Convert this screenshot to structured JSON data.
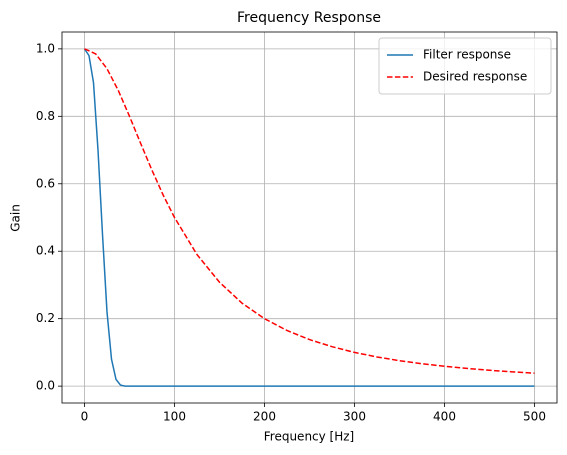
{
  "chart_data": {
    "type": "line",
    "title": "Frequency Response",
    "xlabel": "Frequency [Hz]",
    "ylabel": "Gain",
    "xlim": [
      -25,
      525
    ],
    "ylim": [
      -0.05,
      1.05
    ],
    "xticks": [
      0,
      100,
      200,
      300,
      400,
      500
    ],
    "yticks": [
      {
        "value": 0,
        "label": "0.0"
      },
      {
        "value": 0.2,
        "label": "0.2"
      },
      {
        "value": 0.4,
        "label": "0.4"
      },
      {
        "value": 0.6,
        "label": "0.6"
      },
      {
        "value": 0.8,
        "label": "0.8"
      },
      {
        "value": 1,
        "label": "1.0"
      }
    ],
    "grid": true,
    "legend": "upper right",
    "series": [
      {
        "name": "Filter response",
        "color": "#1f77b4",
        "dash": "solid",
        "x": [
          0,
          5,
          10,
          15,
          20,
          25,
          30,
          35,
          40,
          45,
          50,
          100,
          200,
          300,
          400,
          500
        ],
        "values": [
          1,
          0.98,
          0.9,
          0.7,
          0.45,
          0.22,
          0.08,
          0.02,
          0.003,
          0,
          0,
          0,
          0,
          0,
          0,
          0
        ]
      },
      {
        "name": "Desired response",
        "color": "#ff0000",
        "dash": "dashed",
        "x": [
          0,
          12.5,
          25,
          37.5,
          50,
          62.5,
          75,
          87.5,
          100,
          125,
          150,
          175,
          200,
          225,
          250,
          275,
          300,
          325,
          350,
          375,
          400,
          425,
          450,
          475,
          500
        ],
        "values": [
          1,
          0.985,
          0.941,
          0.877,
          0.8,
          0.719,
          0.64,
          0.566,
          0.5,
          0.39,
          0.308,
          0.246,
          0.2,
          0.165,
          0.138,
          0.117,
          0.1,
          0.0865,
          0.0755,
          0.0664,
          0.0588,
          0.0525,
          0.0471,
          0.0424,
          0.0385
        ]
      }
    ]
  }
}
